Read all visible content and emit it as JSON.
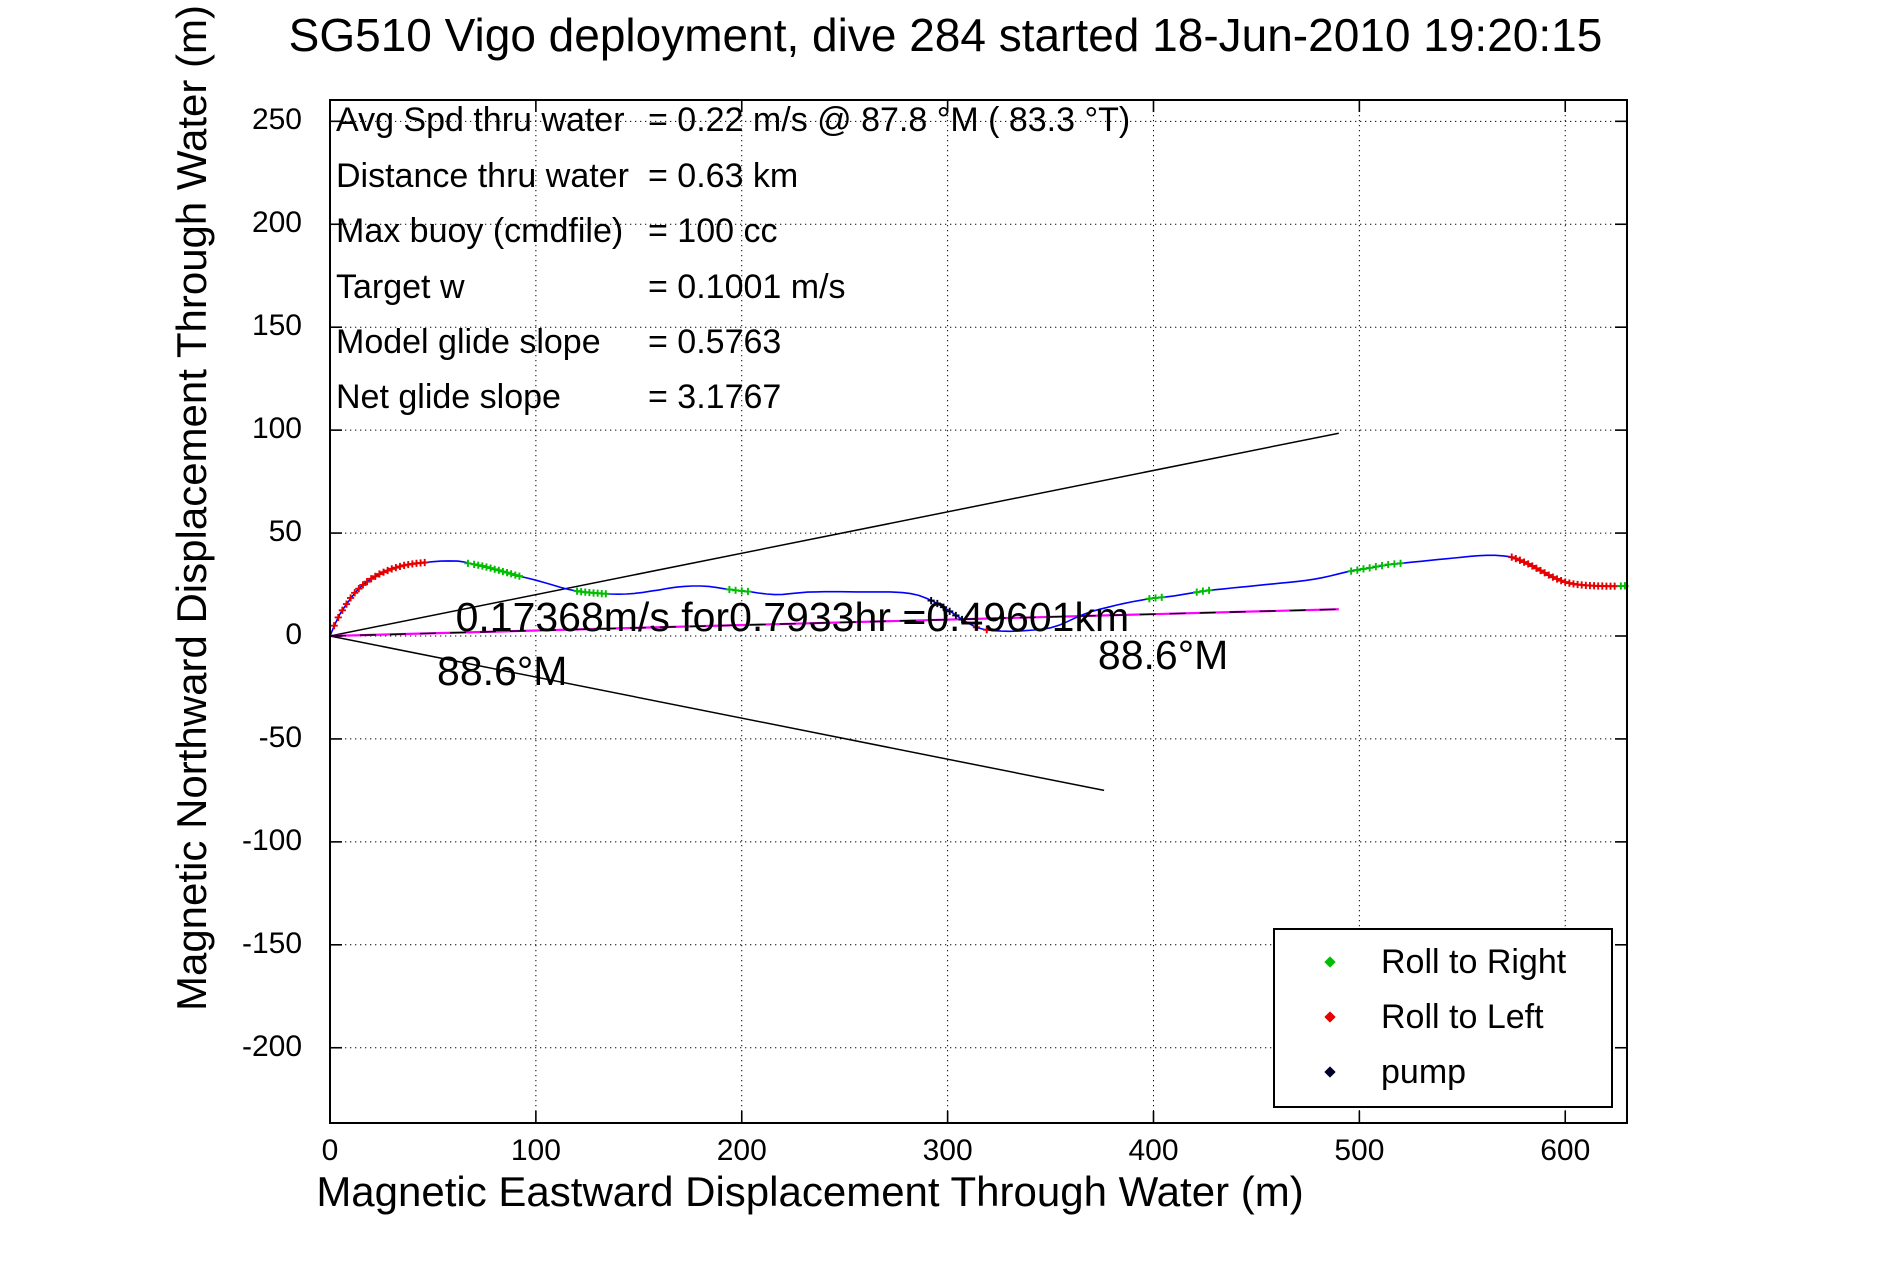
{
  "title": "SG510 Vigo deployment, dive 284 started 18-Jun-2010 19:20:15",
  "axes": {
    "xlabel": "Magnetic Eastward Displacement Through Water (m)",
    "ylabel": "Magnetic Northward Displacement Through Water (m)",
    "xticks": [
      0,
      100,
      200,
      300,
      400,
      500,
      600
    ],
    "yticks": [
      -200,
      -150,
      -100,
      -50,
      0,
      50,
      100,
      150,
      200,
      250
    ]
  },
  "stats": [
    {
      "label": "Avg Spd thru water",
      "value": "=  0.22 m/s @  87.8 °M ( 83.3 °T)"
    },
    {
      "label": "Distance thru water",
      "value": "=  0.63 km"
    },
    {
      "label": "Max buoy (cmdfile)",
      "value": "= 100 cc"
    },
    {
      "label": "Target w",
      "value": "= 0.1001 m/s"
    },
    {
      "label": "Model glide slope",
      "value": "= 0.5763"
    },
    {
      "label": "Net glide slope",
      "value": "= 3.1767"
    }
  ],
  "legend": {
    "items": [
      {
        "label": "Roll to Right",
        "color": "#00BE00"
      },
      {
        "label": "Roll to Left",
        "color": "#E60000"
      },
      {
        "label": "pump",
        "color": "#000028"
      }
    ]
  },
  "colors": {
    "track": "#0000FF",
    "dac_line": "#FF00FF",
    "dac_dash_overlay": "#000000",
    "bearing_lines": "#000000",
    "grid": "#000000",
    "roll_right": "#00BE00",
    "roll_left": "#E60000",
    "pump": "#000028"
  },
  "chart_data": {
    "type": "line",
    "title": "SG510 Vigo deployment, dive 284 started 18-Jun-2010 19:20:15",
    "xlabel": "Magnetic Eastward Displacement Through Water (m)",
    "ylabel": "Magnetic Northward Displacement Through Water (m)",
    "xlim": [
      0,
      630
    ],
    "ylim": [
      -236,
      260
    ],
    "grid": "dotted",
    "legend_position": "lower-right",
    "annotations": [
      {
        "text": "0.17368m/s for0.7933hr =0.49601km",
        "x": 61,
        "y": 20.5
      },
      {
        "text": "88.6°M",
        "x": 52,
        "y": -6
      },
      {
        "text": "88.6°M",
        "x": 373,
        "y": 2
      }
    ],
    "series": [
      {
        "name": "track-through-water",
        "style": "solid-blue",
        "points": [
          [
            0,
            0
          ],
          [
            1,
            2.5
          ],
          [
            3,
            7
          ],
          [
            5,
            11
          ],
          [
            8,
            15.5
          ],
          [
            11,
            19.5
          ],
          [
            14,
            23
          ],
          [
            18,
            26.4
          ],
          [
            22,
            29
          ],
          [
            26,
            31
          ],
          [
            30,
            32.6
          ],
          [
            34,
            33.8
          ],
          [
            38,
            34.7
          ],
          [
            42,
            35.3
          ],
          [
            46,
            35.7
          ],
          [
            50,
            36.1
          ],
          [
            54,
            36.4
          ],
          [
            58,
            36.5
          ],
          [
            62,
            36.4
          ],
          [
            65,
            36
          ],
          [
            68,
            35.2
          ],
          [
            72,
            34.4
          ],
          [
            76,
            33.5
          ],
          [
            80,
            32.4
          ],
          [
            84,
            31.3
          ],
          [
            88,
            30.2
          ],
          [
            92,
            29.1
          ],
          [
            96,
            28.1
          ],
          [
            100,
            27.1
          ],
          [
            104,
            26
          ],
          [
            108,
            24.8
          ],
          [
            112,
            23.6
          ],
          [
            116,
            22.6
          ],
          [
            120,
            21.8
          ],
          [
            124,
            21.3
          ],
          [
            128,
            20.9
          ],
          [
            132,
            20.6
          ],
          [
            136,
            20.4
          ],
          [
            140,
            20.3
          ],
          [
            144,
            20.4
          ],
          [
            148,
            20.7
          ],
          [
            152,
            21.2
          ],
          [
            156,
            21.8
          ],
          [
            160,
            22.4
          ],
          [
            164,
            23.1
          ],
          [
            168,
            23.7
          ],
          [
            172,
            24.1
          ],
          [
            176,
            24.3
          ],
          [
            180,
            24.3
          ],
          [
            184,
            24.1
          ],
          [
            188,
            23.5
          ],
          [
            192,
            22.9
          ],
          [
            196,
            22.4
          ],
          [
            200,
            21.9
          ],
          [
            204,
            21.5
          ],
          [
            208,
            20.9
          ],
          [
            212,
            20.4
          ],
          [
            216,
            20.1
          ],
          [
            220,
            20.2
          ],
          [
            224,
            20.6
          ],
          [
            228,
            21
          ],
          [
            232,
            21.3
          ],
          [
            236,
            21.4
          ],
          [
            240,
            21.5
          ],
          [
            248,
            21.5
          ],
          [
            256,
            21.4
          ],
          [
            264,
            21.4
          ],
          [
            272,
            21.4
          ],
          [
            278,
            21.1
          ],
          [
            282,
            20.6
          ],
          [
            286,
            19.7
          ],
          [
            290,
            18.2
          ],
          [
            294,
            16.3
          ],
          [
            298,
            14
          ],
          [
            302,
            11.5
          ],
          [
            306,
            8.8
          ],
          [
            310,
            6.2
          ],
          [
            314,
            4.2
          ],
          [
            318,
            3.1
          ],
          [
            322,
            2.6
          ],
          [
            326,
            2.4
          ],
          [
            330,
            2.3
          ],
          [
            334,
            2.4
          ],
          [
            338,
            2.6
          ],
          [
            342,
            2.9
          ],
          [
            346,
            3.3
          ],
          [
            350,
            4
          ],
          [
            354,
            5.2
          ],
          [
            358,
            6.9
          ],
          [
            362,
            8.8
          ],
          [
            366,
            10.5
          ],
          [
            370,
            11.9
          ],
          [
            374,
            13
          ],
          [
            378,
            14
          ],
          [
            382,
            15
          ],
          [
            386,
            15.9
          ],
          [
            390,
            16.7
          ],
          [
            394,
            17.4
          ],
          [
            398,
            18.1
          ],
          [
            402,
            18.6
          ],
          [
            406,
            19
          ],
          [
            410,
            19.5
          ],
          [
            414,
            20.1
          ],
          [
            418,
            20.8
          ],
          [
            422,
            21.4
          ],
          [
            426,
            22
          ],
          [
            430,
            22.5
          ],
          [
            434,
            22.9
          ],
          [
            438,
            23.3
          ],
          [
            442,
            23.7
          ],
          [
            446,
            24.1
          ],
          [
            450,
            24.5
          ],
          [
            454,
            24.9
          ],
          [
            458,
            25.3
          ],
          [
            462,
            25.7
          ],
          [
            466,
            26.1
          ],
          [
            470,
            26.5
          ],
          [
            474,
            27
          ],
          [
            478,
            27.6
          ],
          [
            482,
            28.3
          ],
          [
            486,
            29.2
          ],
          [
            490,
            30.2
          ],
          [
            494,
            31.2
          ],
          [
            498,
            32
          ],
          [
            502,
            32.6
          ],
          [
            506,
            33.2
          ],
          [
            510,
            33.9
          ],
          [
            514,
            34.6
          ],
          [
            518,
            35.1
          ],
          [
            522,
            35.5
          ],
          [
            526,
            35.9
          ],
          [
            530,
            36.3
          ],
          [
            534,
            36.7
          ],
          [
            538,
            37.1
          ],
          [
            542,
            37.5
          ],
          [
            546,
            37.9
          ],
          [
            550,
            38.3
          ],
          [
            554,
            38.7
          ],
          [
            558,
            39
          ],
          [
            562,
            39.2
          ],
          [
            566,
            39.2
          ],
          [
            570,
            38.9
          ],
          [
            573,
            38.5
          ],
          [
            576,
            37.6
          ],
          [
            579,
            36.4
          ],
          [
            582,
            35
          ],
          [
            585,
            33.5
          ],
          [
            588,
            31.8
          ],
          [
            591,
            30.1
          ],
          [
            594,
            28.6
          ],
          [
            597,
            27.3
          ],
          [
            600,
            26.2
          ],
          [
            603,
            25.5
          ],
          [
            606,
            25
          ],
          [
            609,
            24.7
          ],
          [
            612,
            24.5
          ],
          [
            616,
            24.3
          ],
          [
            620,
            24.2
          ],
          [
            625,
            24.2
          ],
          [
            630,
            24.4
          ]
        ]
      },
      {
        "name": "net-displacement-line",
        "style": "magenta-with-black-dashes",
        "points": [
          [
            0,
            0
          ],
          [
            490,
            13
          ]
        ]
      },
      {
        "name": "bearing-wedge-upper",
        "style": "thin-black",
        "points": [
          [
            0,
            0
          ],
          [
            490,
            98.5
          ]
        ]
      },
      {
        "name": "bearing-wedge-lower",
        "style": "thin-black",
        "points": [
          [
            0,
            0
          ],
          [
            376,
            -75
          ]
        ]
      }
    ],
    "markers": {
      "roll_right": [
        [
          67,
          35.3
        ],
        [
          70,
          34.8
        ],
        [
          72,
          34.4
        ],
        [
          74,
          34
        ],
        [
          76,
          33.5
        ],
        [
          78,
          33
        ],
        [
          80,
          32.4
        ],
        [
          82,
          31.9
        ],
        [
          84,
          31.3
        ],
        [
          86,
          30.8
        ],
        [
          88,
          30.2
        ],
        [
          90,
          29.6
        ],
        [
          92,
          29.1
        ],
        [
          120,
          21.8
        ],
        [
          122,
          21.5
        ],
        [
          124,
          21.3
        ],
        [
          126,
          21.1
        ],
        [
          128,
          20.9
        ],
        [
          130,
          20.8
        ],
        [
          132,
          20.6
        ],
        [
          134,
          20.5
        ],
        [
          194,
          22.6
        ],
        [
          197,
          22.2
        ],
        [
          200,
          21.9
        ],
        [
          203,
          21.6
        ],
        [
          398,
          18.1
        ],
        [
          401,
          18.5
        ],
        [
          404,
          18.8
        ],
        [
          421,
          21.3
        ],
        [
          424,
          21.8
        ],
        [
          427,
          22.2
        ],
        [
          496,
          31.5
        ],
        [
          499,
          32
        ],
        [
          502,
          32.6
        ],
        [
          505,
          33.1
        ],
        [
          508,
          33.7
        ],
        [
          511,
          34.2
        ],
        [
          514,
          34.7
        ],
        [
          517,
          35
        ],
        [
          520,
          35.3
        ],
        [
          627,
          24.3
        ],
        [
          629,
          24.4
        ]
      ],
      "roll_left": [
        [
          2,
          5
        ],
        [
          4,
          9
        ],
        [
          6,
          12.5
        ],
        [
          8,
          15.5
        ],
        [
          10,
          18.5
        ],
        [
          12,
          21
        ],
        [
          14,
          23
        ],
        [
          16,
          24.8
        ],
        [
          18,
          26.4
        ],
        [
          20,
          27.8
        ],
        [
          22,
          29
        ],
        [
          24,
          30.1
        ],
        [
          26,
          31
        ],
        [
          28,
          31.8
        ],
        [
          30,
          32.6
        ],
        [
          32,
          33.2
        ],
        [
          34,
          33.8
        ],
        [
          36,
          34.3
        ],
        [
          38,
          34.7
        ],
        [
          40,
          35
        ],
        [
          42,
          35.3
        ],
        [
          44,
          35.5
        ],
        [
          46,
          35.7
        ],
        [
          314,
          4.2
        ],
        [
          319,
          3
        ],
        [
          574,
          38.3
        ],
        [
          576,
          37.6
        ],
        [
          578,
          36.8
        ],
        [
          580,
          35.9
        ],
        [
          582,
          35
        ],
        [
          584,
          34
        ],
        [
          586,
          32.9
        ],
        [
          588,
          31.8
        ],
        [
          590,
          30.7
        ],
        [
          592,
          29.6
        ],
        [
          594,
          28.6
        ],
        [
          596,
          27.7
        ],
        [
          598,
          26.9
        ],
        [
          600,
          26.2
        ],
        [
          602,
          25.7
        ],
        [
          604,
          25.3
        ],
        [
          606,
          25
        ],
        [
          608,
          24.8
        ],
        [
          610,
          24.6
        ],
        [
          612,
          24.5
        ],
        [
          614,
          24.4
        ],
        [
          616,
          24.3
        ],
        [
          618,
          24.3
        ],
        [
          620,
          24.2
        ],
        [
          622,
          24.2
        ],
        [
          624,
          24.2
        ]
      ],
      "pump": [
        [
          292,
          17.2
        ],
        [
          295,
          15.8
        ],
        [
          298,
          14
        ],
        [
          301,
          12
        ],
        [
          304,
          10
        ],
        [
          307,
          8
        ]
      ]
    }
  }
}
